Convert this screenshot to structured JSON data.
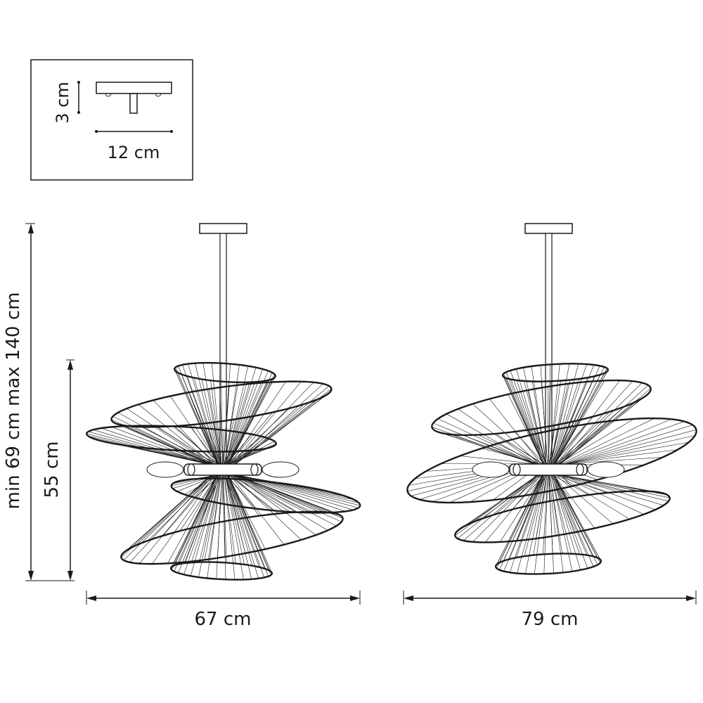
{
  "inset": {
    "height_label": "3 cm",
    "width_label": "12 cm"
  },
  "dimensions": {
    "total_height_label": "min 69 cm max 140 cm",
    "body_height_label": "55 cm",
    "front_width_label": "67 cm",
    "side_width_label": "79 cm"
  },
  "colors": {
    "line": "#1a1a1a",
    "background": "#ffffff"
  }
}
